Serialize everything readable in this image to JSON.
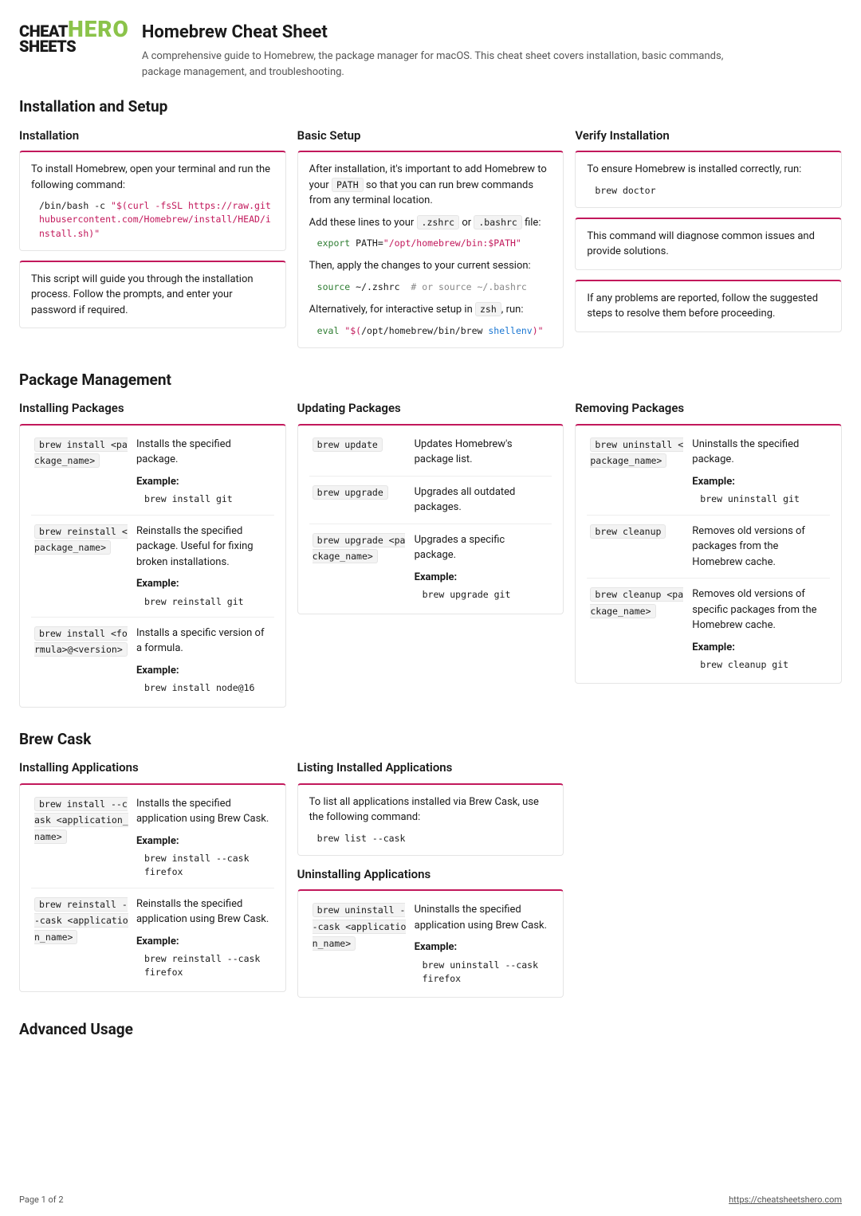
{
  "header": {
    "logo_line1": "CHEAT",
    "logo_line2": "SHEETS",
    "logo_hero": "HERO",
    "title": "Homebrew Cheat Sheet",
    "subtitle": "A comprehensive guide to Homebrew, the package manager for macOS. This cheat sheet covers installation, basic commands, package management, and troubleshooting."
  },
  "s1": {
    "title": "Installation and Setup",
    "c1": {
      "title": "Installation",
      "p1": "To install Homebrew, open your terminal and run the following command:",
      "code_plain": "/bin/bash -c ",
      "code_str": "\"$(curl -fsSL https://raw.githubusercontent.com/Homebrew/install/HEAD/install.sh)\"",
      "p2": "This script will guide you through the installation process. Follow the prompts, and enter your password if required."
    },
    "c2": {
      "title": "Basic Setup",
      "p1_a": "After installation, it's important to add Homebrew to your ",
      "p1_code": "PATH",
      "p1_b": " so that you can run brew commands from any terminal location.",
      "p2_a": "Add these lines to your ",
      "p2_code1": ".zshrc",
      "p2_or": " or ",
      "p2_code2": ".bashrc",
      "p2_b": " file:",
      "code1_cmd": "export",
      "code1_rest": " PATH=",
      "code1_str": "\"/opt/homebrew/bin:$PATH\"",
      "p3": "Then, apply the changes to your current session:",
      "code2_cmd": "source",
      "code2_rest": " ~/.zshrc  ",
      "code2_comment": "# or source ~/.bashrc",
      "p4_a": "Alternatively, for interactive setup in ",
      "p4_code": "zsh",
      "p4_b": ", run:",
      "code3_cmd": "eval",
      "code3_rest": " ",
      "code3_str_a": "\"$(",
      "code3_plain": "/opt/homebrew/bin/brew ",
      "code3_var": "shellenv",
      "code3_str_b": ")\""
    },
    "c3": {
      "title": "Verify Installation",
      "p1": "To ensure Homebrew is installed correctly, run:",
      "code1": "brew doctor",
      "p2": "This command will diagnose common issues and provide solutions.",
      "p3": "If any problems are reported, follow the suggested steps to resolve them before proceeding."
    }
  },
  "s2": {
    "title": "Package Management",
    "c1": {
      "title": "Installing Packages",
      "rows": [
        {
          "cmd": "brew install <package_name>",
          "desc": "Installs the specified package.",
          "ex_label": "Example:",
          "ex": "brew install git"
        },
        {
          "cmd": "brew reinstall <package_name>",
          "desc": "Reinstalls the specified package. Useful for fixing broken installations.",
          "ex_label": "Example:",
          "ex": "brew reinstall git"
        },
        {
          "cmd": "brew install <formula>@<version>",
          "desc": "Installs a specific version of a formula.",
          "ex_label": "Example:",
          "ex": "brew install node@16"
        }
      ]
    },
    "c2": {
      "title": "Updating Packages",
      "rows": [
        {
          "cmd": "brew update",
          "desc": "Updates Homebrew's package list."
        },
        {
          "cmd": "brew upgrade",
          "desc": "Upgrades all outdated packages."
        },
        {
          "cmd": "brew upgrade <package_name>",
          "desc": "Upgrades a specific package.",
          "ex_label": "Example:",
          "ex": "brew upgrade git"
        }
      ]
    },
    "c3": {
      "title": "Removing Packages",
      "rows": [
        {
          "cmd": "brew uninstall <package_name>",
          "desc": "Uninstalls the specified package.",
          "ex_label": "Example:",
          "ex": "brew uninstall git"
        },
        {
          "cmd": "brew cleanup",
          "desc": "Removes old versions of packages from the Homebrew cache."
        },
        {
          "cmd": "brew cleanup <package_name>",
          "desc": "Removes old versions of specific packages from the Homebrew cache.",
          "ex_label": "Example:",
          "ex": "brew cleanup git"
        }
      ]
    }
  },
  "s3": {
    "title": "Brew Cask",
    "c1": {
      "title": "Installing Applications",
      "rows": [
        {
          "cmd": "brew install --cask <application_name>",
          "desc": "Installs the specified application using Brew Cask.",
          "ex_label": "Example:",
          "ex": "brew install --cask firefox"
        },
        {
          "cmd": "brew reinstall --cask <application_name>",
          "desc": "Reinstalls the specified application using Brew Cask.",
          "ex_label": "Example:",
          "ex": "brew reinstall --cask firefox"
        }
      ]
    },
    "c2": {
      "title": "Listing Installed Applications",
      "p1": "To list all applications installed via Brew Cask, use the following command:",
      "code1": "brew list --cask"
    },
    "c3": {
      "title": "Uninstalling Applications",
      "rows": [
        {
          "cmd": "brew uninstall --cask <application_name>",
          "desc": "Uninstalls the specified application using Brew Cask.",
          "ex_label": "Example:",
          "ex": "brew uninstall --cask firefox"
        }
      ]
    }
  },
  "s4": {
    "title": "Advanced Usage"
  },
  "footer": {
    "page": "Page 1 of 2",
    "url": "https://cheatsheetshero.com"
  }
}
